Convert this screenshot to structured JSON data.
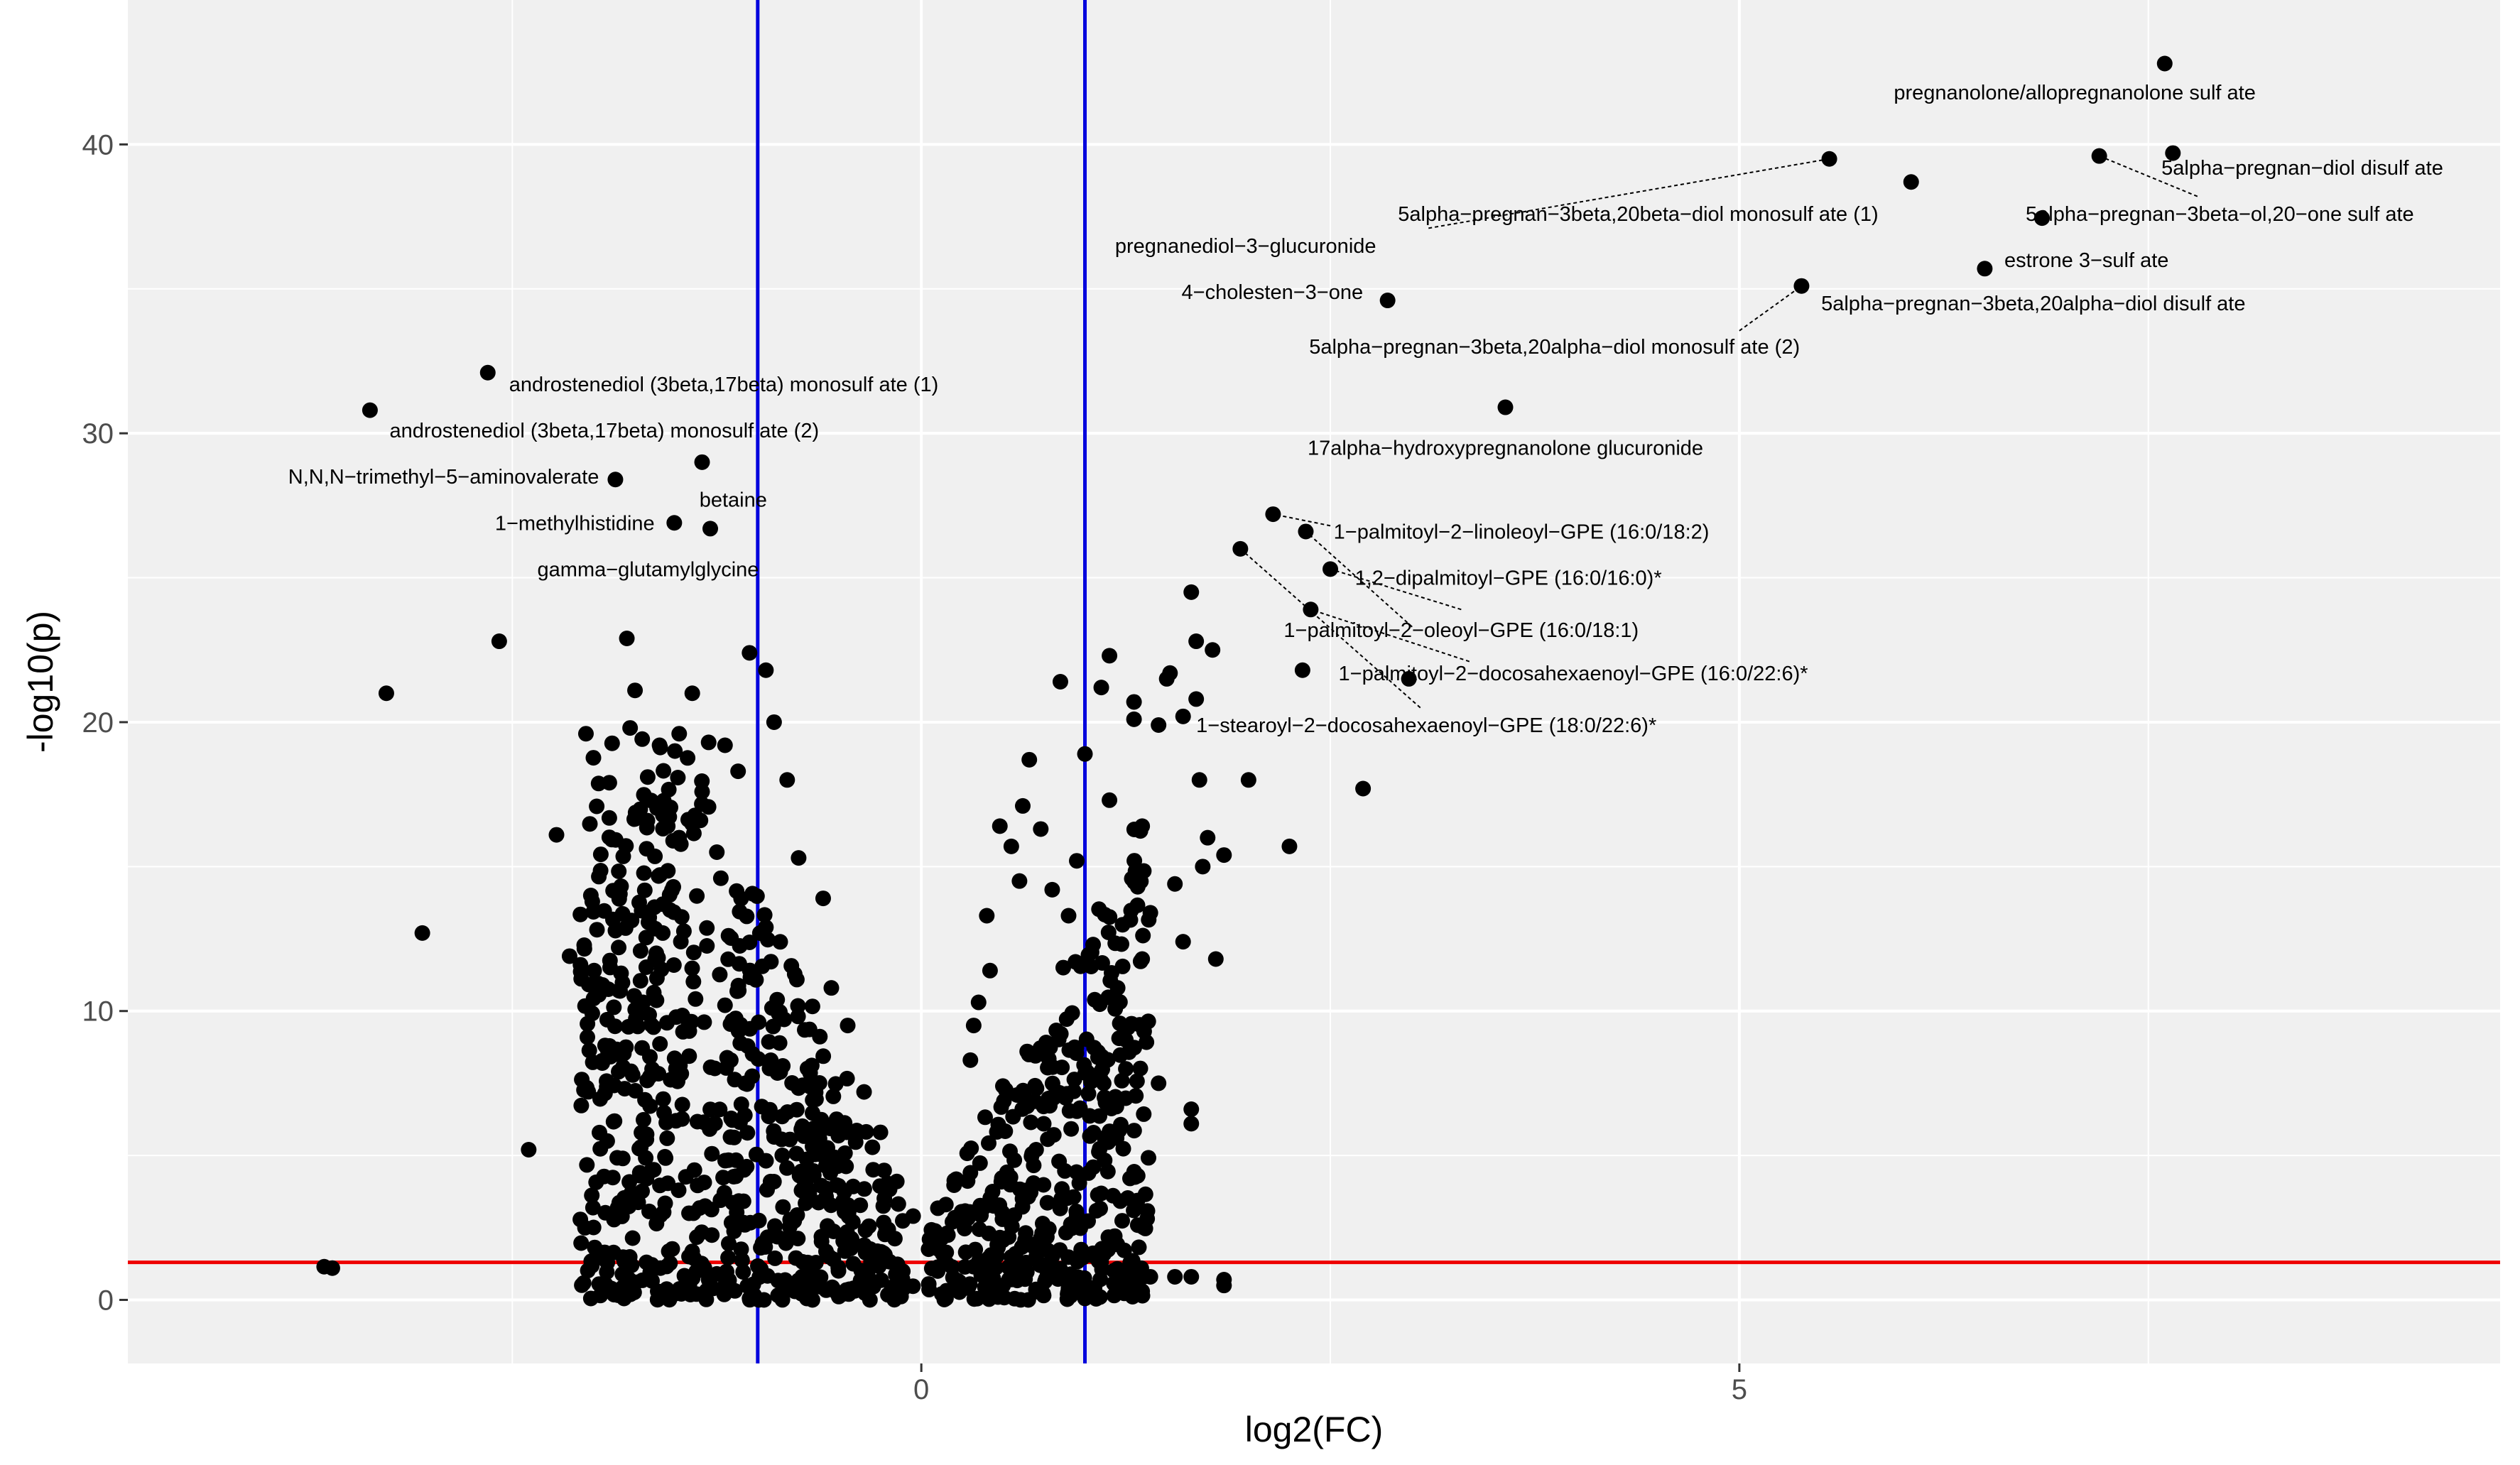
{
  "chart_data": {
    "type": "scatter",
    "title": "",
    "xlabel": "log2(FC)",
    "ylabel": "-log10(p)",
    "xlim": [
      -4.85,
      9.65
    ],
    "ylim": [
      -2.2,
      45
    ],
    "x_ticks": [
      0,
      5
    ],
    "x_tick_labels": [
      "0",
      "5"
    ],
    "y_ticks": [
      0,
      10,
      20,
      30,
      40
    ],
    "y_tick_labels": [
      "0",
      "10",
      "20",
      "30",
      "40"
    ],
    "x_minor_ticks": [
      -2.5,
      2.5,
      7.5
    ],
    "y_minor_ticks": [
      5,
      15,
      25,
      35
    ],
    "grid": true,
    "legend": "none",
    "colors": {
      "panel": "#f0f0f0",
      "grid": "#ffffff",
      "points": "#000000",
      "fc_threshold_lines": "#0000dd",
      "p_threshold_line": "#ee0000"
    },
    "fc_threshold_lines": [
      -1,
      1
    ],
    "p_threshold_line": 1.3,
    "labeled_points": [
      {
        "name": "pregnanolone/allopregnanolone sulfate",
        "label": "pregnanolone/allopregnanolone sulf ate",
        "x": 7.6,
        "y": 42.8,
        "lx": 7.05,
        "ly": 41.8,
        "anchor": "middle",
        "leader": false
      },
      {
        "name": "5alpha-pregnan-diol disulfate",
        "label": "5alpha−pregnan−diol disulf ate",
        "x": 7.65,
        "y": 39.7,
        "lx": 7.58,
        "ly": 39.2,
        "anchor": "start",
        "leader": false
      },
      {
        "name": "5alpha-pregnan-3beta,20beta-diol monosulfate (1)",
        "label": "5alpha−pregnan−3beta,20beta−diol monosulf ate (1)",
        "x": 5.55,
        "y": 39.5,
        "lx": 5.85,
        "ly": 37.6,
        "anchor": "end",
        "leader": true,
        "lead_from": [
          3.1,
          37.1
        ]
      },
      {
        "name": "5alpha-pregnan-3beta-ol,20-one sulfate",
        "label": "5alpha−pregnan−3beta−ol,20−one sulf ate",
        "x": 7.2,
        "y": 39.6,
        "lx": 6.75,
        "ly": 37.6,
        "anchor": "start",
        "leader": true,
        "lead_from": [
          7.8,
          38.2
        ]
      },
      {
        "name": "pregnanediol-3-glucuronide",
        "label": "pregnanediol−3−glucuronide",
        "x": 6.05,
        "y": 38.7,
        "lx": 2.78,
        "ly": 36.5,
        "anchor": "end",
        "leader": false
      },
      {
        "name": "estrone 3-sulfate",
        "label": "estrone 3−sulf ate",
        "x": 6.5,
        "y": 35.7,
        "lx": 6.62,
        "ly": 36.0,
        "anchor": "start",
        "leader": false
      },
      {
        "name": "4-cholesten-3-one",
        "label": "4−cholesten−3−one",
        "x": 2.85,
        "y": 34.6,
        "lx": 2.7,
        "ly": 34.9,
        "anchor": "end",
        "leader": false
      },
      {
        "name": "5alpha-pregnan-3beta,20alpha-diol disulfate",
        "label": "5alpha−pregnan−3beta,20alpha−diol disulf ate",
        "x": 6.85,
        "y": 37.45,
        "lx": 5.5,
        "ly": 34.5,
        "anchor": "start",
        "leader": false
      },
      {
        "name": "5alpha-pregnan-3beta,20alpha-diol monosulfate (2)",
        "label": "5alpha−pregnan−3beta,20alpha−diol monosulf ate (2)",
        "x": 5.38,
        "y": 35.1,
        "lx": 5.37,
        "ly": 33.0,
        "anchor": "end",
        "leader": true,
        "lead_from": [
          5.0,
          33.55
        ]
      },
      {
        "name": "androstenediol (3beta,17beta) monosulfate (1)",
        "label": "androstenediol (3beta,17beta) monosulf ate (1)",
        "x": -2.65,
        "y": 32.1,
        "lx": -2.52,
        "ly": 31.7,
        "anchor": "start",
        "leader": false
      },
      {
        "name": "androstenediol (3beta,17beta) monosulfate (2)",
        "label": "androstenediol (3beta,17beta) monosulf ate (2)",
        "x": -3.37,
        "y": 30.8,
        "lx": -3.25,
        "ly": 30.1,
        "anchor": "start",
        "leader": false
      },
      {
        "name": "17alpha-hydroxypregnanolone glucuronide",
        "label": "17alpha−hydroxypregnanolone glucuronide",
        "x": 3.57,
        "y": 30.9,
        "lx": 3.57,
        "ly": 29.5,
        "anchor": "middle",
        "leader": false
      },
      {
        "name": "N,N,N-trimethyl-5-aminovalerate",
        "label": "N,N,N−trimethyl−5−aminovalerate",
        "x": -1.87,
        "y": 28.4,
        "lx": -1.97,
        "ly": 28.5,
        "anchor": "end",
        "leader": false
      },
      {
        "name": "betaine",
        "label": "betaine",
        "x": -1.34,
        "y": 29.0,
        "lx": -1.15,
        "ly": 27.7,
        "anchor": "middle",
        "leader": false
      },
      {
        "name": "1-methylhistidine",
        "label": "1−methylhistidine",
        "x": -1.51,
        "y": 26.9,
        "lx": -1.63,
        "ly": 26.9,
        "anchor": "end",
        "leader": false
      },
      {
        "name": "gamma-glutamylglycine",
        "label": "gamma−glutamylglycine",
        "x": -1.29,
        "y": 26.7,
        "lx": -1.67,
        "ly": 25.3,
        "anchor": "middle",
        "leader": false
      },
      {
        "name": "1-palmitoyl-2-linoleoyl-GPE (16:0/18:2)",
        "label": "1−palmitoyl−2−linoleoyl−GPE (16:0/18:2)",
        "x": 2.15,
        "y": 27.2,
        "lx": 2.52,
        "ly": 26.6,
        "anchor": "start",
        "leader": true,
        "lead_from": [
          2.5,
          26.8
        ]
      },
      {
        "name": "1,2-dipalmitoyl-GPE (16:0/16:0)*",
        "label": "1,2−dipalmitoyl−GPE (16:0/16:0)*",
        "x": 2.35,
        "y": 26.6,
        "lx": 2.65,
        "ly": 25.0,
        "anchor": "start",
        "leader": true,
        "lead_from": [
          3.0,
          23.3
        ]
      },
      {
        "name": "1-palmitoyl-2-oleoyl-GPE (16:0/18:1)",
        "label": "1−palmitoyl−2−oleoyl−GPE (16:0/18:1)",
        "x": 2.5,
        "y": 25.3,
        "lx": 3.3,
        "ly": 23.2,
        "anchor": "middle",
        "leader": true,
        "lead_from": [
          3.3,
          23.9
        ]
      },
      {
        "name": "1-palmitoyl-2-docosahexaenoyl-GPE (16:0/22:6)*",
        "label": "1−palmitoyl−2−docosahexaenoyl−GPE (16:0/22:6)*",
        "x": 2.38,
        "y": 23.9,
        "lx": 2.55,
        "ly": 21.7,
        "anchor": "start",
        "leader": true,
        "lead_from": [
          3.35,
          22.1
        ]
      },
      {
        "name": "1-stearoyl-2-docosahexaenoyl-GPE (18:0/22:6)*",
        "label": "1−stearoyl−2−docosahexaenoyl−GPE (18:0/22:6)*",
        "x": 1.95,
        "y": 26.0,
        "lx": 1.68,
        "ly": 19.9,
        "anchor": "start",
        "leader": true,
        "lead_from": [
          3.05,
          20.5
        ]
      },
      {
        "name": "unlabeled-1",
        "label": "",
        "x": 2.98,
        "y": 21.5,
        "lx": 0,
        "ly": 0,
        "anchor": "start",
        "leader": false
      },
      {
        "name": "unlabeled-2",
        "label": "",
        "x": 2.33,
        "y": 21.8,
        "lx": 0,
        "ly": 0,
        "anchor": "start",
        "leader": false
      }
    ],
    "extra_points": [
      [
        -3.6,
        1.1
      ],
      [
        -3.65,
        1.15
      ],
      [
        -3.27,
        21.0
      ],
      [
        -3.05,
        12.7
      ],
      [
        -2.58,
        22.8
      ],
      [
        -2.4,
        5.2
      ],
      [
        -2.23,
        16.1
      ],
      [
        -2.15,
        11.9
      ],
      [
        -2.05,
        19.6
      ],
      [
        -2.02,
        14.0
      ],
      [
        -2.0,
        11.4
      ],
      [
        -1.95,
        8.2
      ],
      [
        -1.92,
        9.7
      ],
      [
        -1.85,
        12.2
      ],
      [
        -1.8,
        22.9
      ],
      [
        -1.75,
        21.1
      ],
      [
        -1.78,
        19.8
      ],
      [
        -1.7,
        10.3
      ],
      [
        -1.68,
        1.3
      ],
      [
        -1.6,
        19.2
      ],
      [
        -1.55,
        16.4
      ],
      [
        -1.48,
        19.6
      ],
      [
        -1.4,
        21.0
      ],
      [
        -1.42,
        1.5
      ],
      [
        -1.35,
        16.6
      ],
      [
        -1.3,
        19.3
      ],
      [
        -1.2,
        19.2
      ],
      [
        -1.12,
        18.3
      ],
      [
        -1.05,
        22.4
      ],
      [
        -0.95,
        21.8
      ],
      [
        -1.8,
        0.2
      ],
      [
        -2.02,
        0.05
      ],
      [
        -1.3,
        0.7
      ],
      [
        -1.05,
        0.05
      ],
      [
        -0.7,
        0.05
      ],
      [
        -0.82,
        18.0
      ],
      [
        -0.9,
        20.0
      ],
      [
        -1.25,
        15.5
      ],
      [
        -1.58,
        13.7
      ],
      [
        -1.62,
        12.0
      ],
      [
        -1.85,
        7.9
      ],
      [
        -1.5,
        6.2
      ],
      [
        -1.72,
        4.3
      ],
      [
        -1.42,
        3.0
      ],
      [
        -1.92,
        5.5
      ],
      [
        -1.5,
        8.0
      ],
      [
        -1.2,
        10.2
      ],
      [
        -0.95,
        12.9
      ],
      [
        -0.75,
        15.3
      ],
      [
        -0.6,
        13.9
      ],
      [
        -0.55,
        10.8
      ],
      [
        -0.45,
        9.5
      ],
      [
        -0.35,
        7.2
      ],
      [
        -0.25,
        5.8
      ],
      [
        -0.15,
        4.1
      ],
      [
        -0.05,
        2.9
      ],
      [
        0.05,
        2.1
      ],
      [
        0.1,
        1.0
      ],
      [
        0.15,
        3.3
      ],
      [
        0.3,
        4.4
      ],
      [
        0.32,
        9.5
      ],
      [
        0.3,
        8.3
      ],
      [
        0.35,
        10.3
      ],
      [
        0.42,
        11.4
      ],
      [
        0.4,
        13.3
      ],
      [
        0.48,
        16.4
      ],
      [
        0.55,
        15.7
      ],
      [
        0.6,
        14.5
      ],
      [
        0.62,
        17.1
      ],
      [
        0.66,
        18.7
      ],
      [
        0.73,
        16.3
      ],
      [
        0.8,
        14.2
      ],
      [
        0.85,
        21.4
      ],
      [
        0.9,
        13.3
      ],
      [
        0.95,
        15.2
      ],
      [
        1.0,
        18.9
      ],
      [
        1.05,
        12.3
      ],
      [
        1.1,
        21.2
      ],
      [
        1.15,
        17.3
      ],
      [
        1.2,
        10.8
      ],
      [
        1.25,
        9.0
      ],
      [
        1.3,
        20.1
      ],
      [
        1.35,
        16.4
      ],
      [
        1.4,
        13.4
      ],
      [
        1.45,
        7.5
      ],
      [
        1.5,
        21.5
      ],
      [
        1.55,
        14.4
      ],
      [
        1.6,
        20.2
      ],
      [
        1.65,
        24.5
      ],
      [
        1.7,
        18.0
      ],
      [
        1.75,
        16.0
      ],
      [
        1.8,
        11.8
      ],
      [
        1.85,
        15.4
      ],
      [
        1.65,
        6.6
      ],
      [
        1.65,
        6.1
      ],
      [
        1.35,
        0.3
      ],
      [
        1.4,
        0.8
      ],
      [
        1.55,
        0.8
      ],
      [
        1.65,
        0.8
      ],
      [
        1.85,
        0.7
      ],
      [
        1.85,
        0.5
      ],
      [
        1.0,
        0.05
      ],
      [
        1.2,
        0.3
      ],
      [
        0.5,
        0.5
      ],
      [
        0.75,
        1.2
      ],
      [
        2.0,
        18.0
      ],
      [
        2.25,
        15.7
      ],
      [
        2.7,
        17.7
      ],
      [
        1.68,
        22.8
      ],
      [
        1.78,
        22.5
      ],
      [
        1.68,
        20.8
      ],
      [
        1.45,
        19.9
      ],
      [
        1.3,
        20.7
      ],
      [
        1.15,
        22.3
      ],
      [
        1.52,
        21.7
      ],
      [
        1.72,
        15.0
      ],
      [
        1.6,
        12.4
      ],
      [
        1.35,
        11.8
      ],
      [
        1.25,
        8.0
      ],
      [
        1.1,
        7.6
      ]
    ],
    "cluster_seed": 7,
    "cluster_count": 1050
  }
}
